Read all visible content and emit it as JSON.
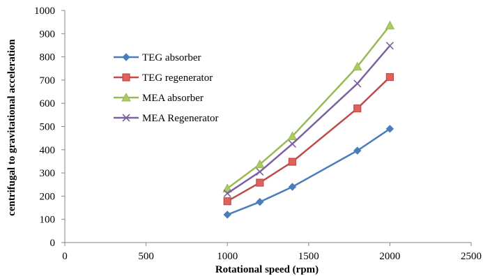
{
  "chart_data": {
    "type": "line",
    "title": "",
    "xlabel": "Rotational speed (rpm)",
    "ylabel": "centrifugal to gravitational acceleration",
    "xlim": [
      0,
      2500
    ],
    "ylim": [
      0,
      1000
    ],
    "xticks": [
      "0",
      "500",
      "1000",
      "1500",
      "2000",
      "2500"
    ],
    "yticks": [
      "0",
      "100",
      "200",
      "300",
      "400",
      "500",
      "600",
      "700",
      "800",
      "900",
      "1000"
    ],
    "grid": false,
    "legend_position": "upper-left",
    "x": [
      1000,
      1200,
      1400,
      1800,
      2000
    ],
    "series": [
      {
        "name": "TEG absorber",
        "values": [
          120,
          175,
          240,
          396,
          490
        ],
        "color": "#4a7ebb",
        "marker": "diamond"
      },
      {
        "name": "TEG regenerator",
        "values": [
          178,
          258,
          348,
          578,
          713
        ],
        "color": "#be4b48",
        "marker": "square"
      },
      {
        "name": "MEA absorber",
        "values": [
          233,
          337,
          458,
          758,
          935
        ],
        "color": "#98b954",
        "marker": "triangle"
      },
      {
        "name": "MEA Regenerator",
        "values": [
          212,
          305,
          425,
          685,
          848
        ],
        "color": "#7d60a0",
        "marker": "x"
      }
    ]
  }
}
